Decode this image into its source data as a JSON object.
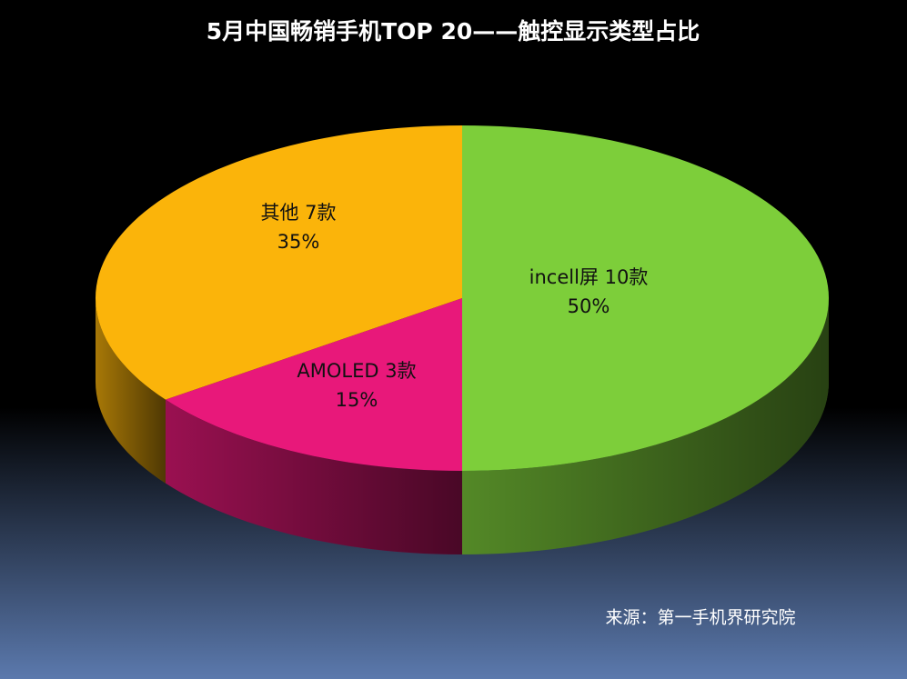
{
  "chart_data": {
    "type": "pie",
    "title": "5月中国畅销手机TOP 20——触控显示类型占比",
    "categories": [
      "incell屏 10款",
      "AMOLED 3款",
      "其他 7款"
    ],
    "values": [
      50,
      15,
      35
    ],
    "value_labels": [
      "50%",
      "15%",
      "35%"
    ],
    "colors": [
      "#7dce3a",
      "#e8187a",
      "#fbb40a"
    ],
    "source": "来源：第一手机界研究院"
  }
}
